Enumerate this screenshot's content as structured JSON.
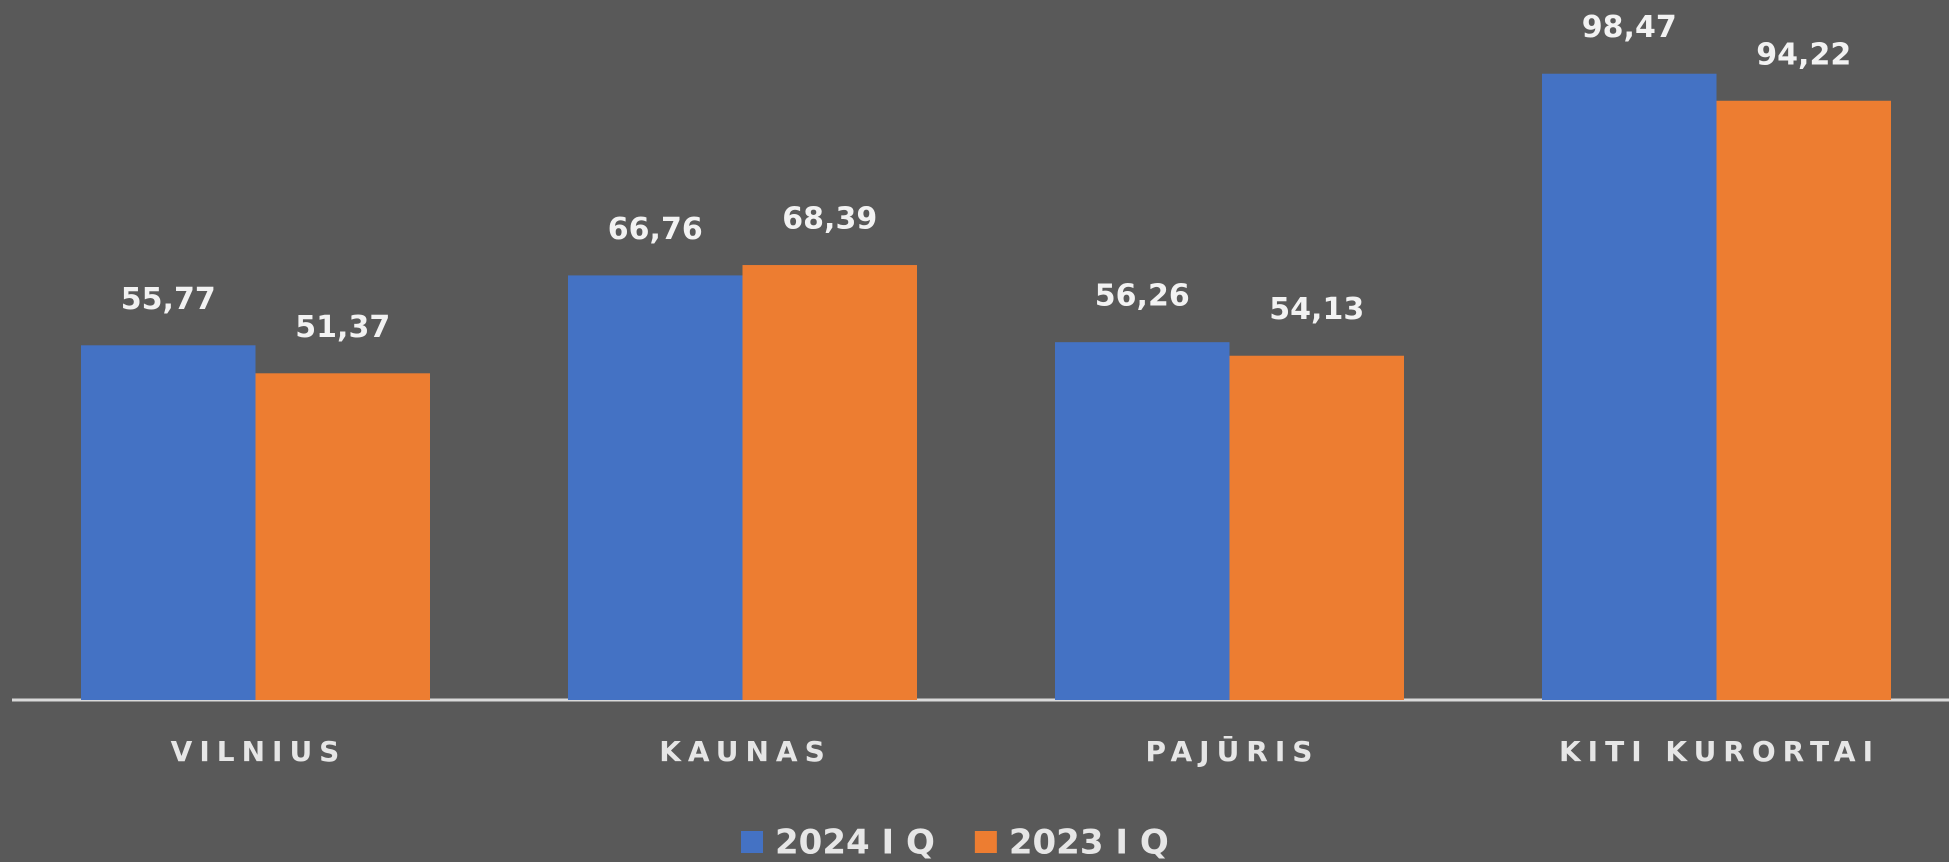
{
  "chart_data": {
    "type": "bar",
    "categories": [
      "VILNIUS",
      "KAUNAS",
      "PAJŪRIS",
      "KITI KURORTAI"
    ],
    "series": [
      {
        "name": "2024 I Q",
        "color": "#4472c4",
        "values": [
          55.77,
          66.76,
          56.26,
          98.47
        ],
        "value_labels": [
          "55,77",
          "66,76",
          "56,26",
          "98,47"
        ]
      },
      {
        "name": "2023 I Q",
        "color": "#ed7d31",
        "values": [
          51.37,
          68.39,
          54.13,
          94.22
        ],
        "value_labels": [
          "51,37",
          "68,39",
          "54,13",
          "94,22"
        ]
      }
    ],
    "legend": "bottom"
  }
}
